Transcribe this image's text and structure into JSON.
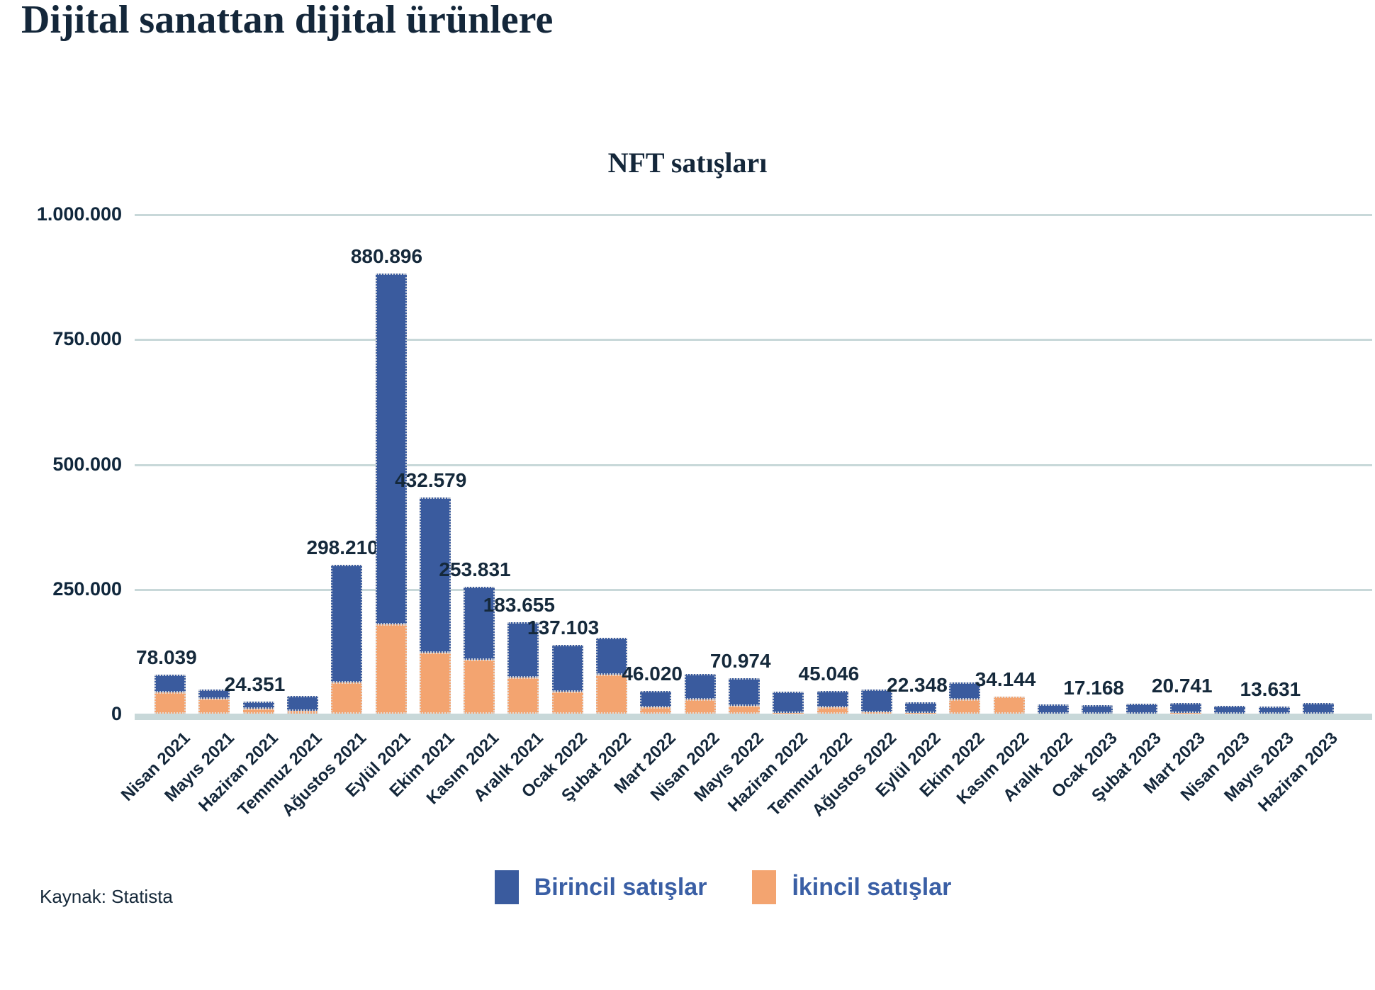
{
  "page": {
    "title": "Dijital sanattan dijital ürünlere",
    "source": "Kaynak: Statista"
  },
  "chart_data": {
    "type": "bar",
    "stacked": true,
    "title": "NFT satışları",
    "categories": [
      "Nisan 2021",
      "Mayıs 2021",
      "Haziran 2021",
      "Temmuz 2021",
      "Ağustos 2021",
      "Eylül 2021",
      "Ekim 2021",
      "Kasım 2021",
      "Aralık 2021",
      "Ocak 2022",
      "Şubat 2022",
      "Mart 2022",
      "Nisan 2022",
      "Mayıs 2022",
      "Haziran 2022",
      "Temmuz 2022",
      "Ağustos 2022",
      "Eylül 2022",
      "Ekim 2022",
      "Kasım 2022",
      "Aralık 2022",
      "Ocak 2023",
      "Şubat 2023",
      "Mart 2023",
      "Nisan 2023",
      "Mayıs 2023",
      "Haziran 2023"
    ],
    "series": [
      {
        "name": "Birincil satışlar",
        "color": "#3a5b9e",
        "stack_position": "top",
        "values": [
          35039,
          18000,
          14351,
          30000,
          235210,
          702896,
          310579,
          145831,
          111655,
          93103,
          74000,
          33020,
          51000,
          55974,
          42000,
          32046,
          45000,
          21348,
          34000,
          0,
          18500,
          17168,
          20000,
          18741,
          16000,
          13631,
          21000
        ]
      },
      {
        "name": "İkincil satışlar",
        "color": "#f3a470",
        "stack_position": "bottom",
        "values": [
          43000,
          30000,
          10000,
          6000,
          63000,
          178000,
          122000,
          108000,
          72000,
          44000,
          78000,
          13000,
          29000,
          15000,
          2000,
          13000,
          3000,
          1000,
          28000,
          34144,
          0,
          0,
          0,
          2000,
          0,
          0,
          0
        ]
      }
    ],
    "totals": [
      78039,
      48000,
      24351,
      36000,
      298210,
      880896,
      432579,
      253831,
      183655,
      137103,
      152000,
      46020,
      80000,
      70974,
      44000,
      45046,
      48000,
      22348,
      62000,
      34144,
      18500,
      17168,
      20000,
      20741,
      16000,
      13631,
      21000
    ],
    "total_labels": [
      "78.039",
      null,
      "24.351",
      null,
      "298.210",
      "880.896",
      "432.579",
      "253.831",
      "183.655",
      "137.103",
      null,
      "46.020",
      null,
      "70.974",
      null,
      "45.046",
      null,
      "22.348",
      null,
      "34.144",
      null,
      "17.168",
      null,
      "20.741",
      null,
      "13.631",
      null
    ],
    "y_ticks": [
      {
        "label": "1.000.000",
        "value": 1000000
      },
      {
        "label": "750.000",
        "value": 750000
      },
      {
        "label": "500.000",
        "value": 500000
      },
      {
        "label": "250.000",
        "value": 250000
      },
      {
        "label": "0",
        "value": 0
      }
    ],
    "ylim": [
      0,
      1000000
    ],
    "grid": true,
    "legend_position": "bottom",
    "colors": {
      "primary_blue": "#3a5b9e",
      "secondary_orange": "#f3a470",
      "gridline": "#c8d8d9",
      "text_dark": "#14273a",
      "legend_text": "#3a5fa5"
    }
  }
}
